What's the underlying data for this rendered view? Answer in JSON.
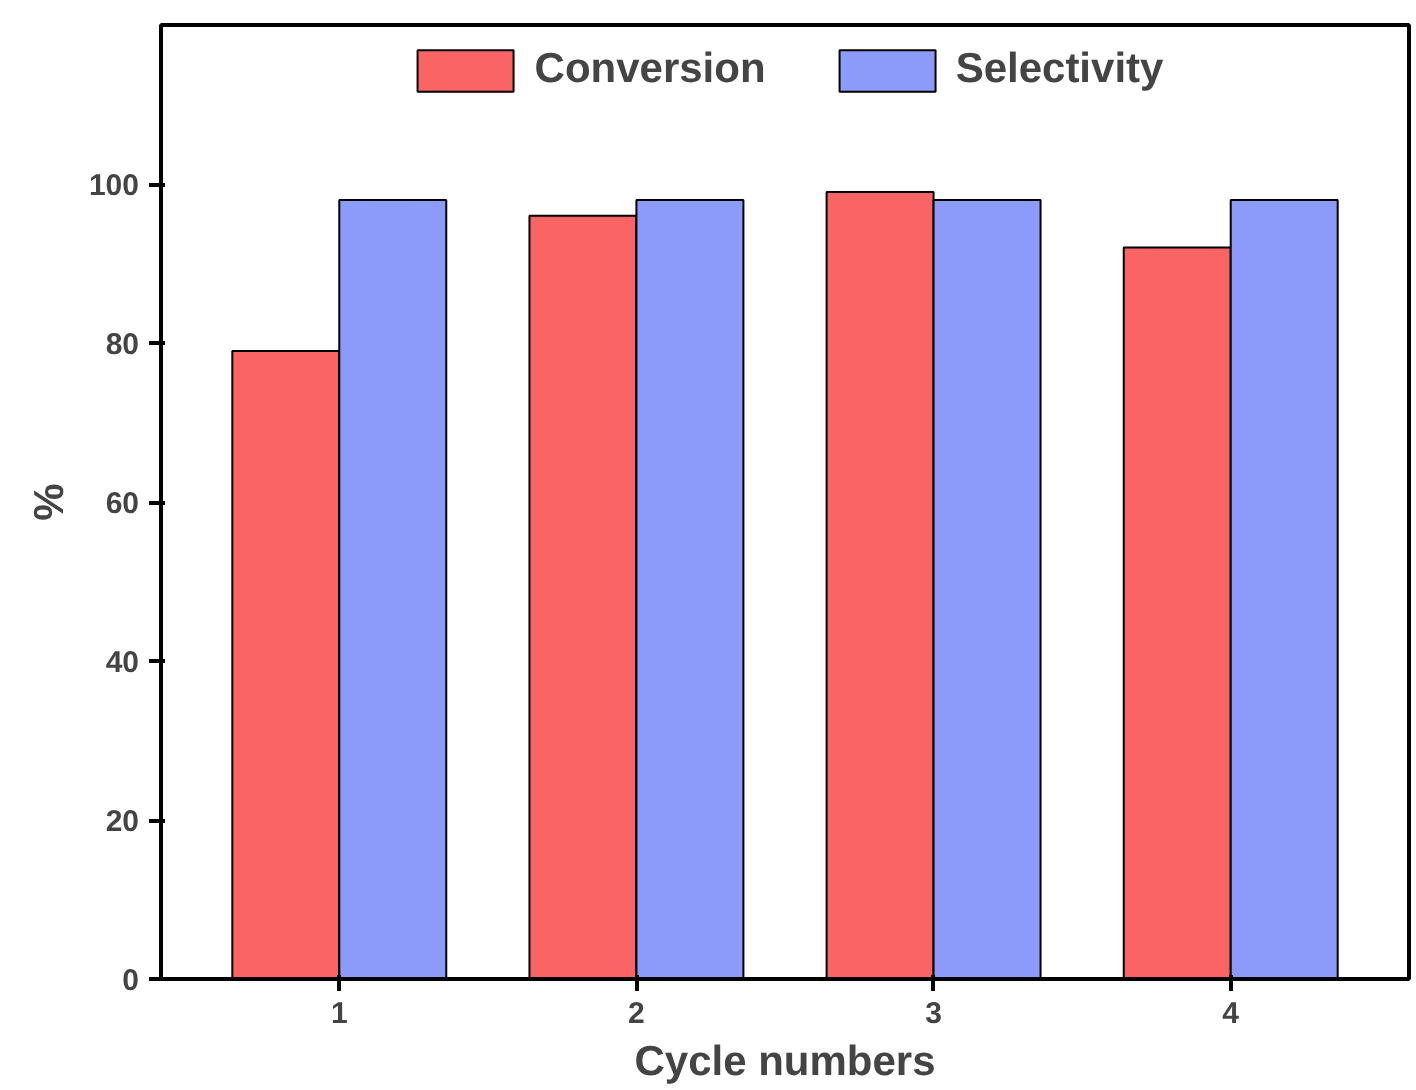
{
  "chart_data": {
    "type": "bar",
    "xlabel": "Cycle numbers",
    "ylabel": "%",
    "categories": [
      "1",
      "2",
      "3",
      "4"
    ],
    "series": [
      {
        "name": "Conversion",
        "color": "#fa6464",
        "values": [
          79,
          96,
          99,
          92
        ]
      },
      {
        "name": "Selectivity",
        "color": "#8c9bfa",
        "values": [
          98,
          98,
          98,
          98
        ]
      }
    ],
    "ylim": [
      0,
      120
    ],
    "yticks": [
      0,
      20,
      40,
      60,
      80,
      100
    ],
    "grid": false,
    "legend": "top"
  }
}
